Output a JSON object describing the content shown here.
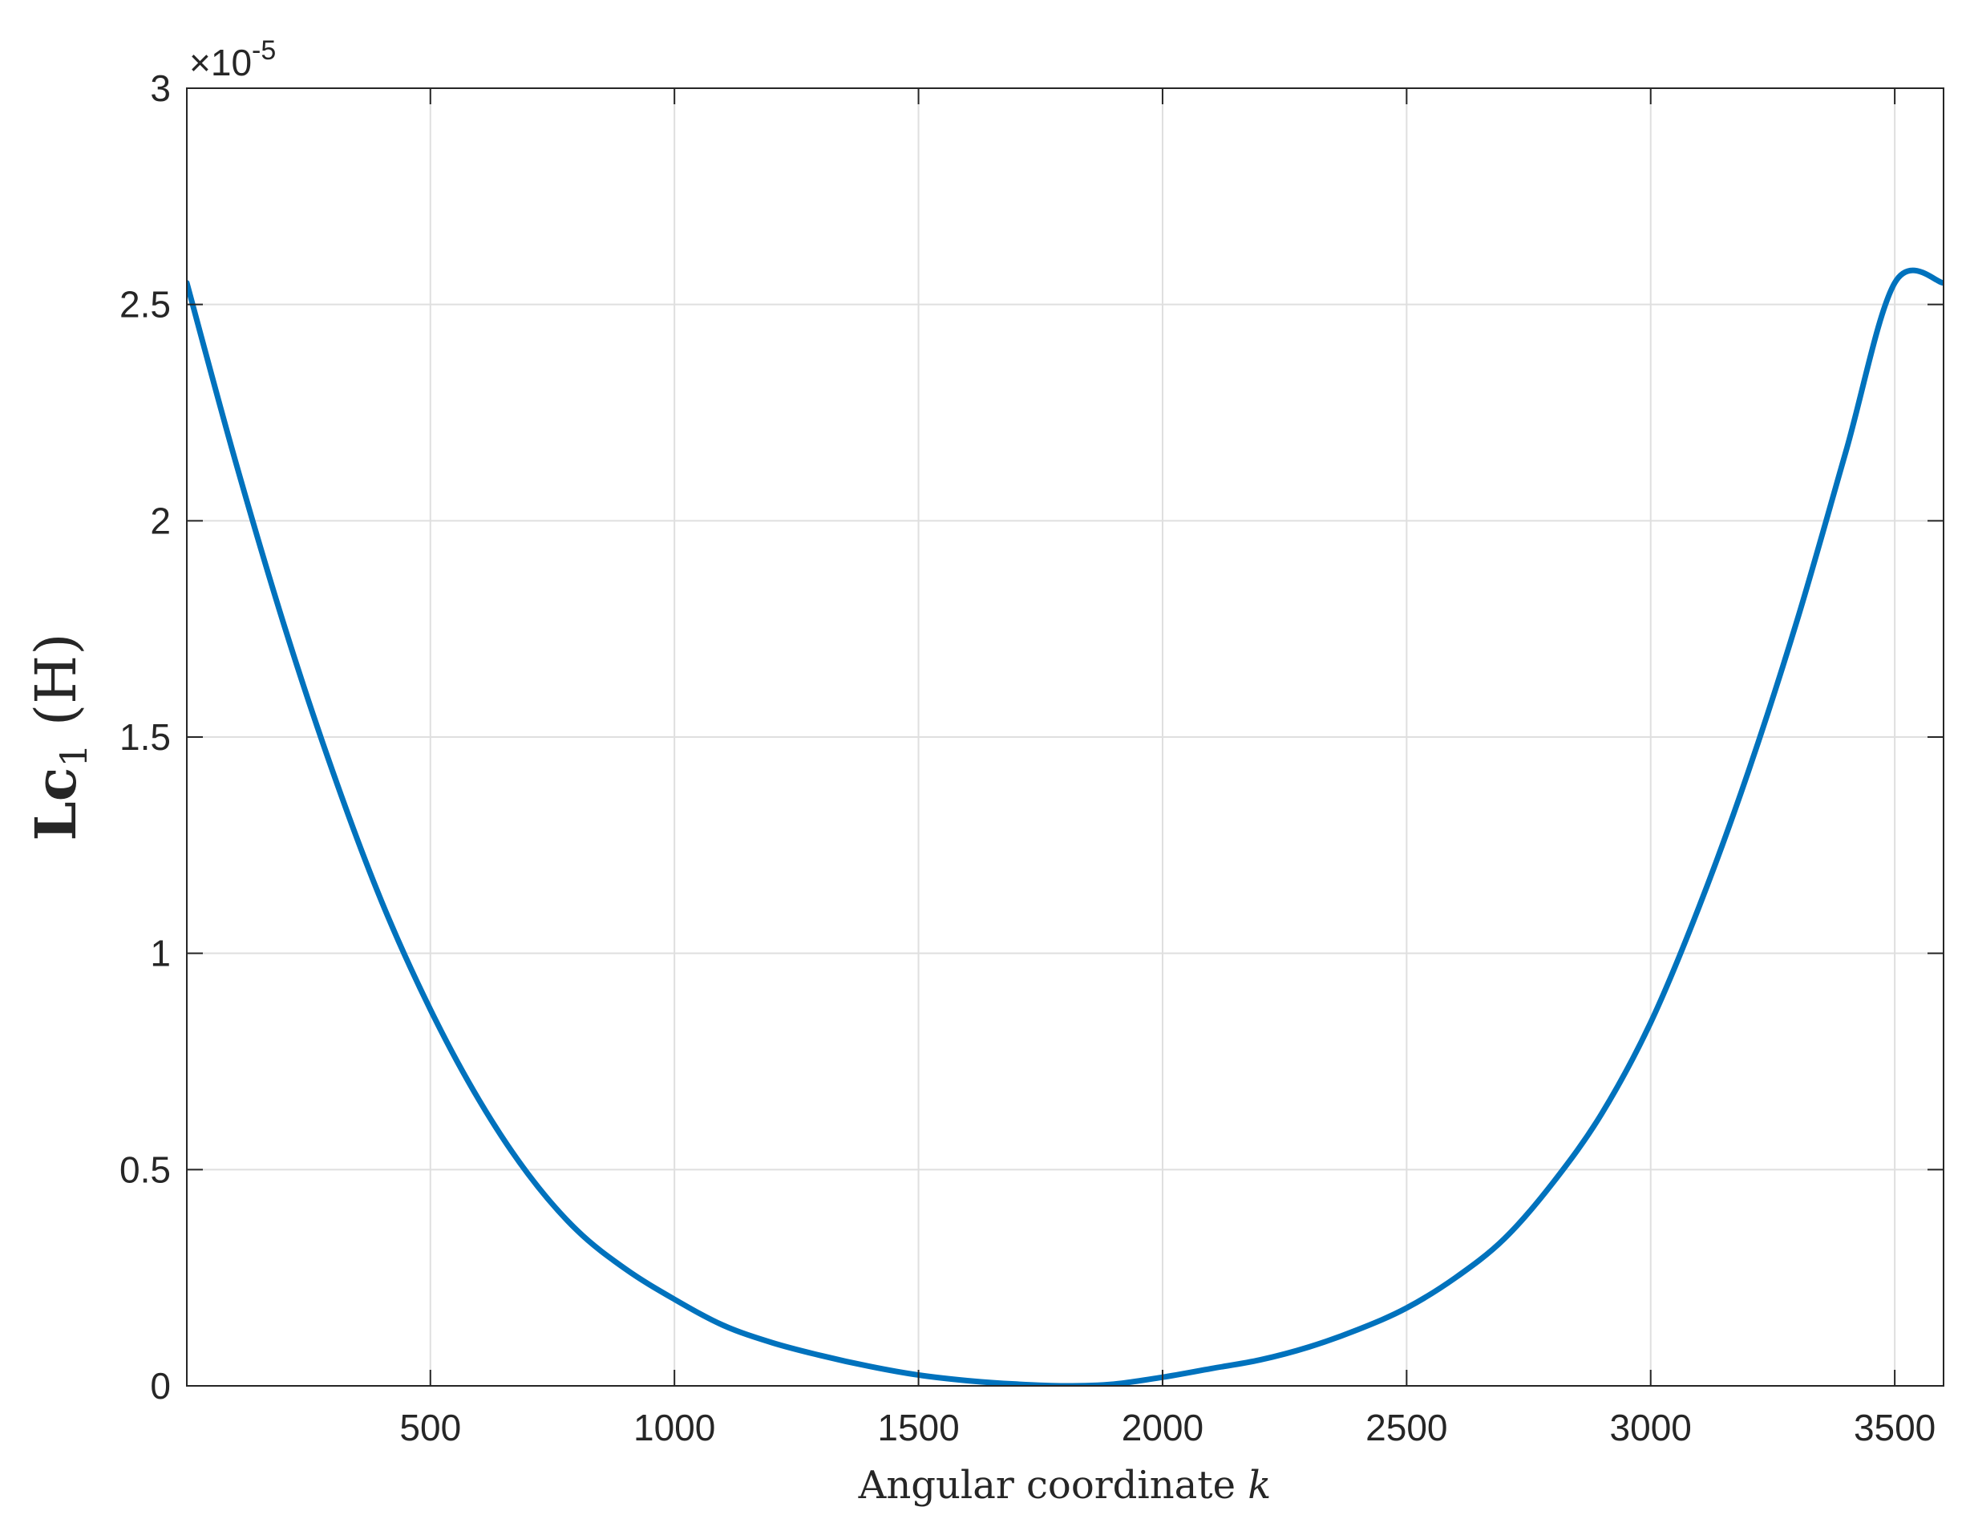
{
  "chart_data": {
    "type": "line",
    "title": "",
    "xlabel": "Angular coordinate k",
    "xlabel_parts": {
      "text": "Angular coordinate ",
      "var": "k"
    },
    "ylabel": "Lc1 (H)",
    "ylabel_parts": {
      "main": "Lc",
      "sub": "1",
      "unit": " (H)"
    },
    "y_multiplier": {
      "base": "×10",
      "exp": "-5"
    },
    "xlim": [
      1,
      3600
    ],
    "ylim": [
      0,
      3
    ],
    "x_ticks": [
      500,
      1000,
      1500,
      2000,
      2500,
      3000,
      3500
    ],
    "x_tick_labels": [
      "500",
      "1000",
      "1500",
      "2000",
      "2500",
      "3000",
      "3500"
    ],
    "y_ticks": [
      0,
      0.5,
      1,
      1.5,
      2,
      2.5,
      3
    ],
    "y_tick_labels": [
      "0",
      "0.5",
      "1",
      "1.5",
      "2",
      "2.5",
      "3"
    ],
    "grid": true,
    "series": [
      {
        "color": "#0072bd",
        "x": [
          1,
          100,
          200,
          300,
          400,
          500,
          600,
          700,
          800,
          900,
          1000,
          1100,
          1200,
          1300,
          1400,
          1500,
          1600,
          1700,
          1800,
          1900,
          2000,
          2100,
          2200,
          2300,
          2400,
          2500,
          2600,
          2700,
          2800,
          2900,
          3000,
          3100,
          3200,
          3300,
          3400,
          3500,
          3600
        ],
        "y": [
          2.55,
          2.14,
          1.76,
          1.42,
          1.12,
          0.87,
          0.66,
          0.49,
          0.36,
          0.27,
          0.2,
          0.14,
          0.1,
          0.07,
          0.045,
          0.025,
          0.012,
          0.004,
          0.0,
          0.004,
          0.02,
          0.04,
          0.06,
          0.09,
          0.13,
          0.18,
          0.25,
          0.34,
          0.47,
          0.63,
          0.84,
          1.11,
          1.42,
          1.77,
          2.16,
          2.55,
          2.55
        ]
      }
    ]
  }
}
